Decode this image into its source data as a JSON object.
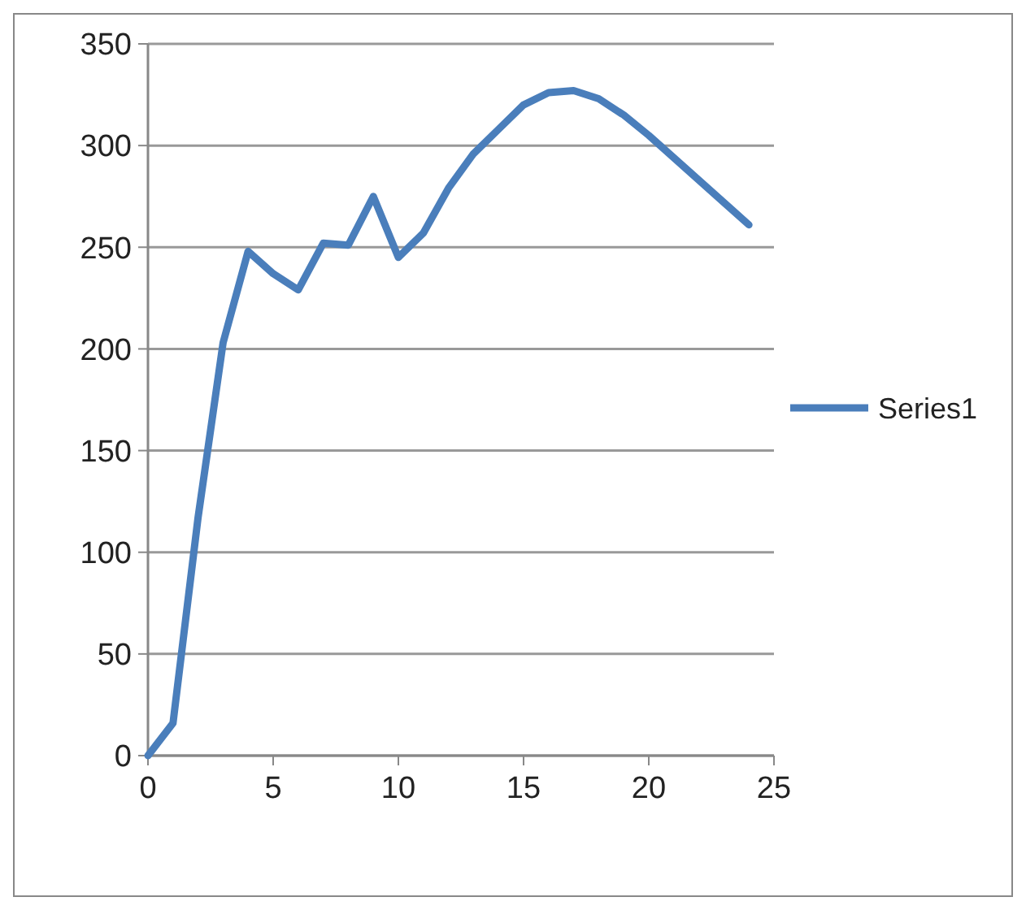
{
  "chart_data": {
    "type": "line",
    "x": [
      0,
      1,
      2,
      3,
      4,
      5,
      6,
      7,
      8,
      9,
      10,
      11,
      12,
      13,
      14,
      15,
      16,
      17,
      18,
      19,
      20,
      24
    ],
    "series": [
      {
        "name": "Series1",
        "color": "#4a7ebb",
        "values": [
          0,
          16,
          117,
          203,
          248,
          237,
          229,
          252,
          251,
          275,
          245,
          257,
          279,
          296,
          308,
          320,
          326,
          327,
          323,
          315,
          305,
          261
        ]
      }
    ],
    "xlim": [
      0,
      25
    ],
    "xticks": [
      0,
      5,
      10,
      15,
      20,
      25
    ],
    "ylim": [
      0,
      350
    ],
    "yticks": [
      0,
      50,
      100,
      150,
      200,
      250,
      300,
      350
    ],
    "grid": "y",
    "legend": "right",
    "marker": "none",
    "line_style": "solid"
  }
}
